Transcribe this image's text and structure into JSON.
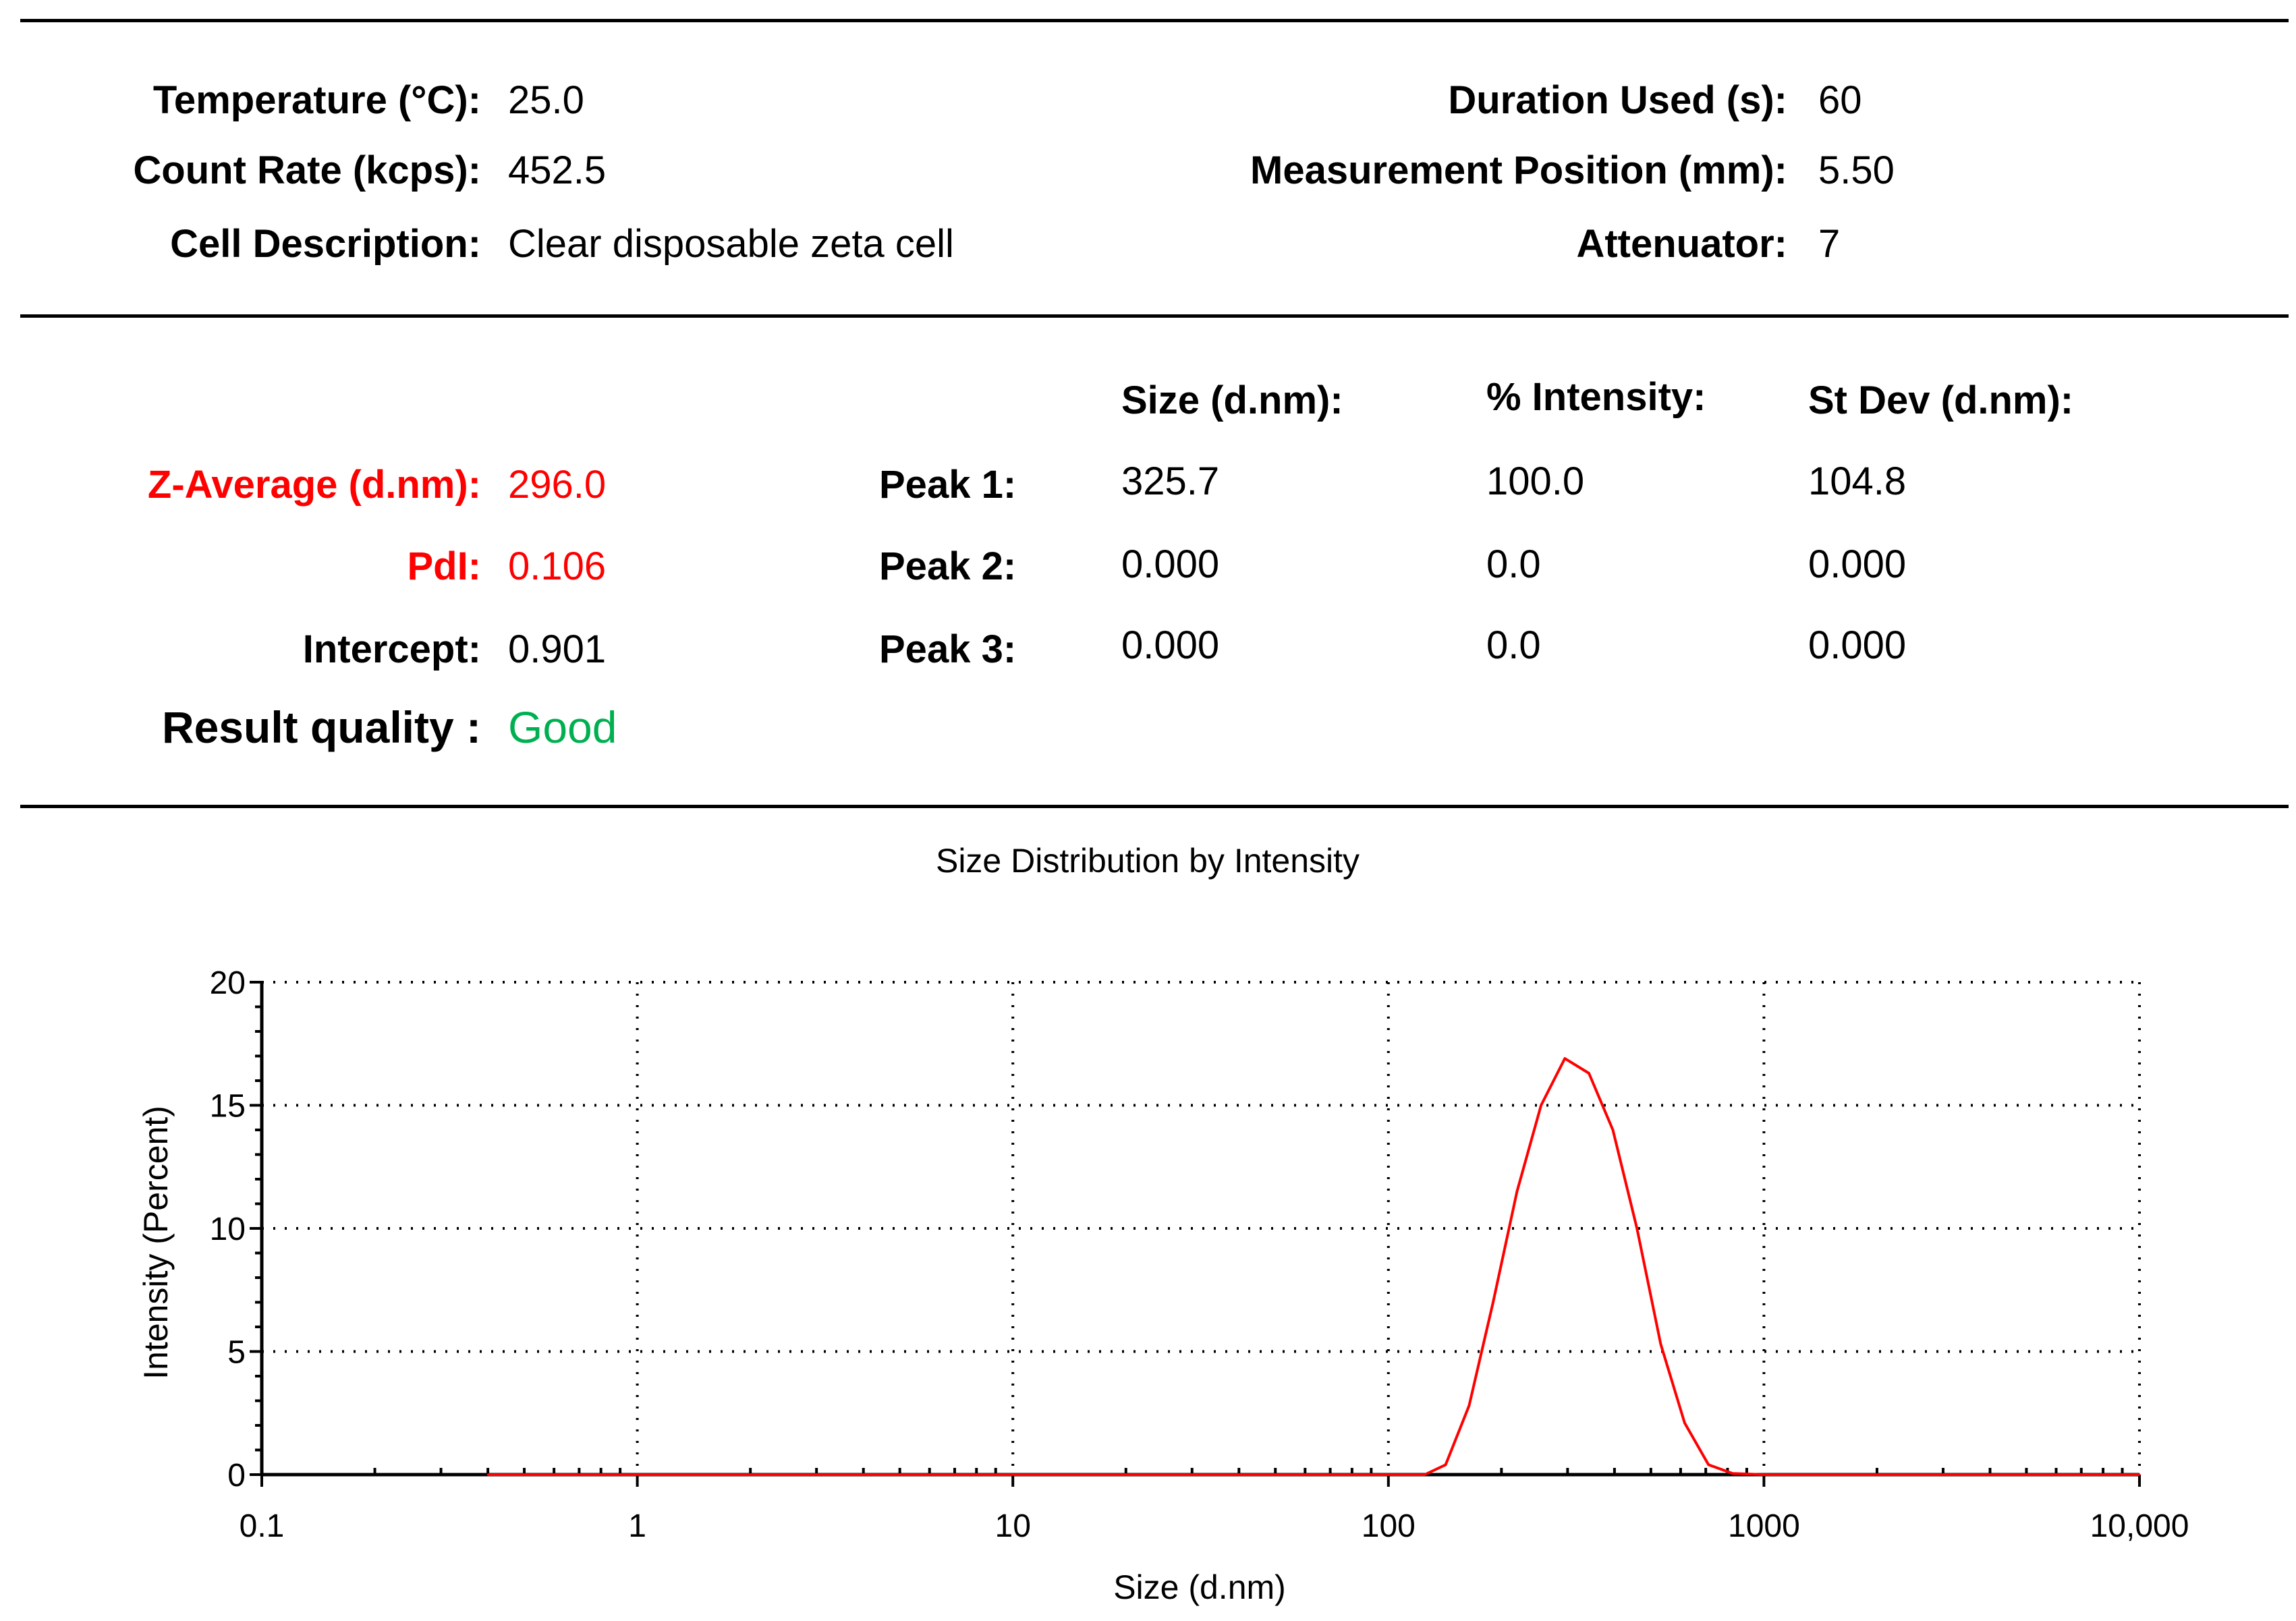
{
  "meta": {
    "temperature_label": "Temperature (°C):",
    "temperature_value": "25.0",
    "count_rate_label": "Count Rate (kcps):",
    "count_rate_value": "452.5",
    "cell_description_label": "Cell Description:",
    "cell_description_value": "Clear disposable zeta cell",
    "duration_label": "Duration Used (s):",
    "duration_value": "60",
    "position_label": "Measurement Position (mm):",
    "position_value": "5.50",
    "attenuator_label": "Attenuator:",
    "attenuator_value": "7"
  },
  "results": {
    "z_average_label": "Z-Average (d.nm):",
    "z_average_value": "296.0",
    "pdi_label": "PdI:",
    "pdi_value": "0.106",
    "intercept_label": "Intercept:",
    "intercept_value": "0.901",
    "quality_label": "Result quality :",
    "quality_value": "Good",
    "highlight_color": "#ff0000",
    "quality_color": "#00b050"
  },
  "peaks": {
    "headers": [
      "Size (d.nm):",
      "% Intensity:",
      "St Dev (d.nm):"
    ],
    "rows": [
      {
        "label": "Peak 1:",
        "size": "325.7",
        "intensity": "100.0",
        "stdev": "104.8"
      },
      {
        "label": "Peak 2:",
        "size": "0.000",
        "intensity": "0.0",
        "stdev": "0.000"
      },
      {
        "label": "Peak 3:",
        "size": "0.000",
        "intensity": "0.0",
        "stdev": "0.000"
      }
    ]
  },
  "chart_data": {
    "type": "line",
    "title": "Size Distribution by Intensity",
    "xlabel": "Size (d.nm)",
    "ylabel": "Intensity (Percent)",
    "x_scale": "log",
    "xlim": [
      0.1,
      10000
    ],
    "ylim": [
      0,
      20
    ],
    "x_ticks": [
      0.1,
      1,
      10,
      100,
      1000,
      10000
    ],
    "x_tick_labels": [
      "0.1",
      "1",
      "10",
      "100",
      "1000",
      "10,000"
    ],
    "y_ticks": [
      0,
      5,
      10,
      15,
      20
    ],
    "y_tick_labels": [
      "0",
      "5",
      "10",
      "15",
      "20"
    ],
    "grid": true,
    "series": [
      {
        "color": "#ff0000",
        "x": [
          0.4,
          1,
          10,
          100,
          125,
          142,
          164,
          190,
          220,
          255,
          295,
          342,
          396,
          459,
          531,
          615,
          712,
          825,
          1000,
          10000
        ],
        "y": [
          0,
          0,
          0,
          0,
          0,
          0.4,
          2.8,
          7.0,
          11.5,
          15.0,
          16.9,
          16.3,
          14.0,
          10.0,
          5.3,
          2.1,
          0.4,
          0.05,
          0,
          0
        ]
      }
    ]
  }
}
